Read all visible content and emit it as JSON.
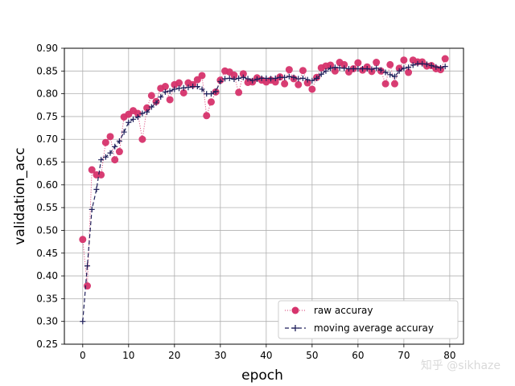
{
  "chart_data": {
    "type": "line",
    "title": "",
    "xlabel": "epoch",
    "ylabel": "validation_acc",
    "xlim": [
      -4,
      83
    ],
    "ylim": [
      0.25,
      0.9
    ],
    "xticks": [
      0,
      10,
      20,
      30,
      40,
      50,
      60,
      70,
      80
    ],
    "yticks": [
      0.25,
      0.3,
      0.35,
      0.4,
      0.45,
      0.5,
      0.55,
      0.6,
      0.65,
      0.7,
      0.75,
      0.8,
      0.85,
      0.9
    ],
    "grid": true,
    "legend_position": "lower-right",
    "x": [
      0,
      1,
      2,
      3,
      4,
      5,
      6,
      7,
      8,
      9,
      10,
      11,
      12,
      13,
      14,
      15,
      16,
      17,
      18,
      19,
      20,
      21,
      22,
      23,
      24,
      25,
      26,
      27,
      28,
      29,
      30,
      31,
      32,
      33,
      34,
      35,
      36,
      37,
      38,
      39,
      40,
      41,
      42,
      43,
      44,
      45,
      46,
      47,
      48,
      49,
      50,
      51,
      52,
      53,
      54,
      55,
      56,
      57,
      58,
      59,
      60,
      61,
      62,
      63,
      64,
      65,
      66,
      67,
      68,
      69,
      70,
      71,
      72,
      73,
      74,
      75,
      76,
      77,
      78,
      79
    ],
    "series": [
      {
        "name": "raw accuray",
        "color": "#d6336c",
        "style": "markers with dotted line",
        "values": [
          0.48,
          0.378,
          0.633,
          0.622,
          0.622,
          0.693,
          0.706,
          0.655,
          0.673,
          0.749,
          0.755,
          0.763,
          0.757,
          0.7,
          0.769,
          0.796,
          0.783,
          0.812,
          0.816,
          0.787,
          0.82,
          0.824,
          0.802,
          0.824,
          0.82,
          0.831,
          0.84,
          0.752,
          0.782,
          0.804,
          0.83,
          0.85,
          0.848,
          0.841,
          0.803,
          0.844,
          0.825,
          0.826,
          0.835,
          0.83,
          0.826,
          0.83,
          0.826,
          0.837,
          0.822,
          0.853,
          0.833,
          0.82,
          0.851,
          0.824,
          0.81,
          0.836,
          0.857,
          0.861,
          0.863,
          0.85,
          0.869,
          0.864,
          0.848,
          0.855,
          0.868,
          0.852,
          0.859,
          0.849,
          0.869,
          0.85,
          0.822,
          0.864,
          0.822,
          0.856,
          0.874,
          0.847,
          0.874,
          0.87,
          0.87,
          0.861,
          0.862,
          0.855,
          0.853,
          0.877
        ]
      },
      {
        "name": "moving average accuray",
        "color": "#1f1f5a",
        "style": "dashed line with plus markers",
        "values": [
          0.3,
          0.422,
          0.546,
          0.59,
          0.655,
          0.661,
          0.67,
          0.684,
          0.696,
          0.716,
          0.737,
          0.744,
          0.749,
          0.757,
          0.76,
          0.771,
          0.78,
          0.793,
          0.804,
          0.806,
          0.81,
          0.812,
          0.813,
          0.814,
          0.816,
          0.816,
          0.81,
          0.8,
          0.8,
          0.805,
          0.827,
          0.833,
          0.834,
          0.832,
          0.834,
          0.836,
          0.833,
          0.829,
          0.832,
          0.834,
          0.834,
          0.833,
          0.834,
          0.836,
          0.836,
          0.838,
          0.836,
          0.833,
          0.834,
          0.831,
          0.829,
          0.834,
          0.843,
          0.85,
          0.856,
          0.858,
          0.857,
          0.856,
          0.855,
          0.855,
          0.855,
          0.855,
          0.855,
          0.854,
          0.856,
          0.852,
          0.847,
          0.842,
          0.838,
          0.85,
          0.856,
          0.858,
          0.863,
          0.866,
          0.866,
          0.865,
          0.862,
          0.859,
          0.857,
          0.86
        ]
      }
    ]
  },
  "watermark": "知乎 @sikhaze"
}
